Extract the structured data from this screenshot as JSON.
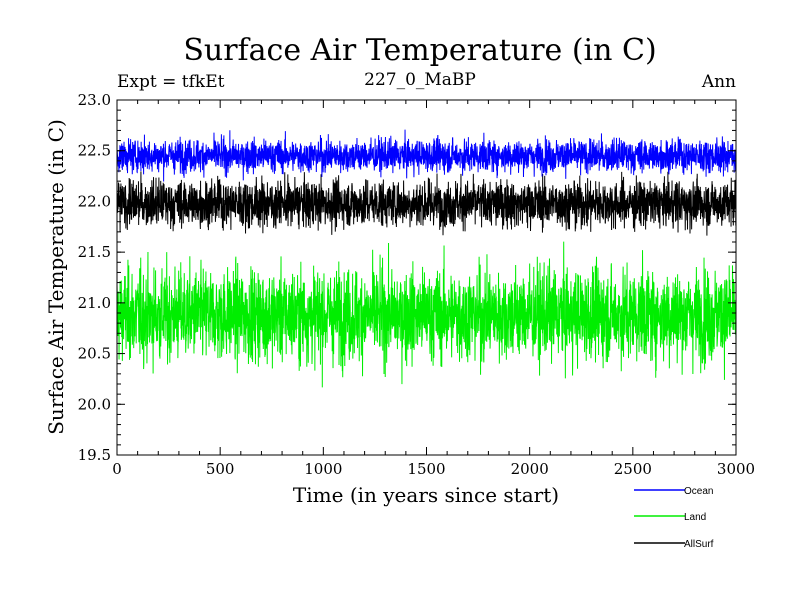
{
  "chart_data": {
    "type": "line",
    "title": "Surface Air Temperature (in C)",
    "subtitle": "227_0_MaBP",
    "left_note": "Expt = tfkEt",
    "right_note": "Ann",
    "xlabel": "Time (in years since start)",
    "ylabel": "Surface Air Temperature (in C)",
    "xlim": [
      0,
      3000
    ],
    "ylim": [
      19.5,
      23.0
    ],
    "xticks": [
      "0",
      "500",
      "1000",
      "1500",
      "2000",
      "2500",
      "3000"
    ],
    "yticks": [
      "19.5",
      "20.0",
      "20.5",
      "21.0",
      "21.5",
      "22.0",
      "22.5",
      "23.0"
    ],
    "legend_position": "bottom-right, below plot",
    "series": [
      {
        "name": "Ocean",
        "color": "#0000ff",
        "mean": 22.45,
        "min": 22.15,
        "max": 22.77
      },
      {
        "name": "Land",
        "color": "#00ee00",
        "mean": 20.88,
        "min": 19.98,
        "max": 21.62
      },
      {
        "name": "AllSurf",
        "color": "#000000",
        "mean": 21.98,
        "min": 21.52,
        "max": 22.34
      }
    ]
  }
}
